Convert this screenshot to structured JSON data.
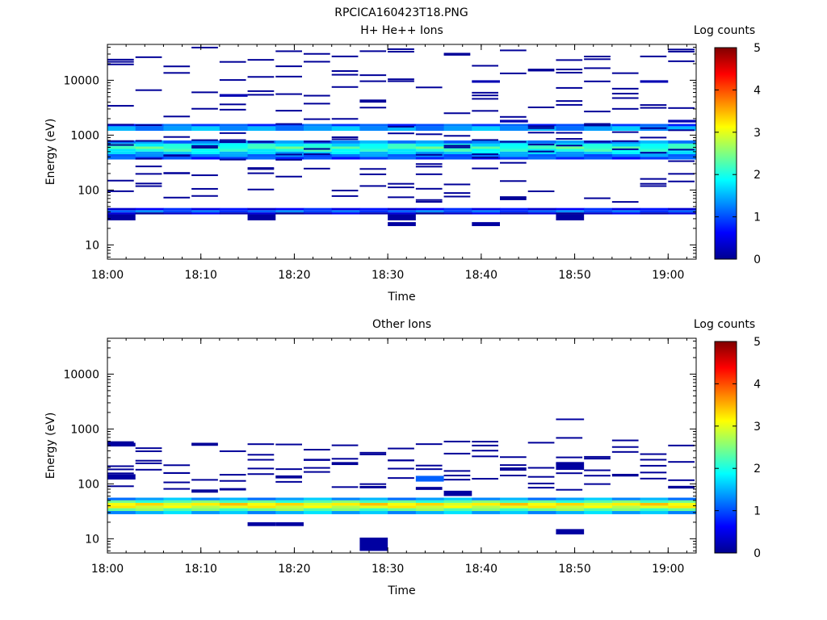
{
  "figure_title": "RPCICA160423T18.PNG",
  "colors": {
    "colormap": [
      "#00008f",
      "#0000ff",
      "#0080ff",
      "#00ffff",
      "#80ff80",
      "#ffff00",
      "#ff8000",
      "#ff0000",
      "#800000"
    ]
  },
  "chart_data": [
    {
      "type": "heatmap",
      "title": "H+ He++ Ions",
      "xlabel": "Time",
      "ylabel": "Energy (eV)",
      "x_ticks": [
        "18:00",
        "18:10",
        "18:20",
        "18:30",
        "18:40",
        "18:50",
        "19:00"
      ],
      "x_range": [
        "18:00",
        "19:03"
      ],
      "y_ticks": [
        "10",
        "100",
        "1000",
        "10000"
      ],
      "y_range": [
        5.5,
        45000
      ],
      "y_scale": "log",
      "colorbar": {
        "label": "Log counts",
        "range": [
          0,
          5
        ],
        "ticks": [
          "0",
          "1",
          "2",
          "3",
          "4",
          "5"
        ]
      },
      "time_columns": [
        "18:00",
        "18:03",
        "18:06",
        "18:09",
        "18:12",
        "18:15",
        "18:18",
        "18:21",
        "18:24",
        "18:27",
        "18:30",
        "18:33",
        "18:36",
        "18:39",
        "18:42",
        "18:45",
        "18:48",
        "18:51",
        "18:54",
        "18:57",
        "19:00"
      ],
      "bands": [
        {
          "e_low": 1450,
          "e_high": 1600,
          "value": 1.0
        },
        {
          "e_low": 1200,
          "e_high": 1450,
          "value": 1.4
        },
        {
          "e_low": 700,
          "e_high": 800,
          "value": 1.3
        },
        {
          "e_low": 620,
          "e_high": 700,
          "value": 1.9
        },
        {
          "e_low": 560,
          "e_high": 620,
          "value": 2.2
        },
        {
          "e_low": 500,
          "e_high": 560,
          "value": 2.0
        },
        {
          "e_low": 450,
          "e_high": 500,
          "value": 1.6
        },
        {
          "e_low": 400,
          "e_high": 450,
          "value": 1.2
        },
        {
          "e_low": 360,
          "e_high": 400,
          "value": 0.9
        },
        {
          "e_low": 39,
          "e_high": 43,
          "value": 1.1
        },
        {
          "e_low": 43,
          "e_high": 47,
          "value": 0.6
        },
        {
          "e_low": 36,
          "e_high": 39,
          "value": 0.3
        }
      ],
      "scatter_bins": [
        {
          "e_low": 9000,
          "e_high": 10000,
          "cols": [
            13,
            19
          ],
          "value": 0.2
        },
        {
          "e_low": 28,
          "e_high": 36,
          "cols": [
            0,
            5,
            10,
            16
          ],
          "value": 0.1
        },
        {
          "e_low": 22,
          "e_high": 26,
          "cols": [
            10,
            13
          ],
          "value": 0.1
        },
        {
          "e_low": 5000,
          "e_high": 5600,
          "cols": [
            4
          ],
          "value": 0.2
        },
        {
          "e_low": 1700,
          "e_high": 1900,
          "cols": [
            14,
            20
          ],
          "value": 0.2
        }
      ]
    },
    {
      "type": "heatmap",
      "title": "Other Ions",
      "xlabel": "Time",
      "ylabel": "Energy (eV)",
      "x_ticks": [
        "18:00",
        "18:10",
        "18:20",
        "18:30",
        "18:40",
        "18:50",
        "19:00"
      ],
      "x_range": [
        "18:00",
        "19:03"
      ],
      "y_ticks": [
        "10",
        "100",
        "1000",
        "10000"
      ],
      "y_range": [
        5.5,
        45000
      ],
      "y_scale": "log",
      "colorbar": {
        "label": "Log counts",
        "range": [
          0,
          5
        ],
        "ticks": [
          "0",
          "1",
          "2",
          "3",
          "4",
          "5"
        ]
      },
      "time_columns": [
        "18:00",
        "18:03",
        "18:06",
        "18:09",
        "18:12",
        "18:15",
        "18:18",
        "18:21",
        "18:24",
        "18:27",
        "18:30",
        "18:33",
        "18:36",
        "18:39",
        "18:42",
        "18:45",
        "18:48",
        "18:51",
        "18:54",
        "18:57",
        "19:00"
      ],
      "bands": [
        {
          "e_low": 50,
          "e_high": 56,
          "value": 1.4
        },
        {
          "e_low": 45,
          "e_high": 50,
          "value": 2.3
        },
        {
          "e_low": 40,
          "e_high": 45,
          "value": 3.2
        },
        {
          "e_low": 36,
          "e_high": 40,
          "value": 3.0
        },
        {
          "e_low": 32,
          "e_high": 36,
          "value": 2.4
        },
        {
          "e_low": 28,
          "e_high": 32,
          "value": 1.5
        }
      ],
      "scatter_bins": [
        {
          "e_low": 17,
          "e_high": 20,
          "cols": [
            5,
            6
          ],
          "value": 0.1
        },
        {
          "e_low": 6,
          "e_high": 10.5,
          "cols": [
            9
          ],
          "value": 0.1
        },
        {
          "e_low": 12,
          "e_high": 15,
          "cols": [
            16
          ],
          "value": 0.1
        },
        {
          "e_low": 180,
          "e_high": 250,
          "cols": [
            16
          ],
          "value": 0.1
        },
        {
          "e_low": 110,
          "e_high": 140,
          "cols": [
            11
          ],
          "value": 1.1
        },
        {
          "e_low": 60,
          "e_high": 75,
          "cols": [
            12
          ],
          "value": 0.1
        },
        {
          "e_low": 480,
          "e_high": 560,
          "cols": [
            0
          ],
          "value": 0.1
        },
        {
          "e_low": 1450,
          "e_high": 1550,
          "cols": [
            16
          ],
          "value": 0.1
        },
        {
          "e_low": 120,
          "e_high": 150,
          "cols": [
            0
          ],
          "value": 0.1
        }
      ]
    }
  ]
}
